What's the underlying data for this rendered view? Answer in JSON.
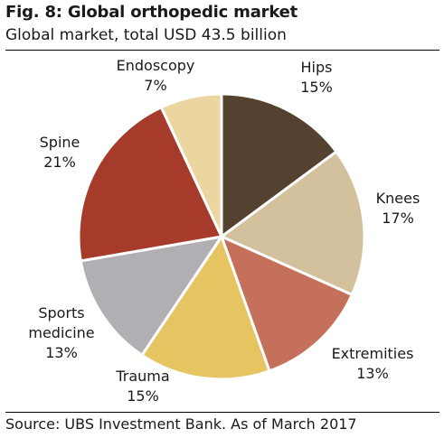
{
  "header": {
    "title": "Fig. 8: Global orthopedic market",
    "subtitle": "Global market, total USD 43.5 billion"
  },
  "footer": {
    "source": "Source: UBS Investment Bank. As of March 2017"
  },
  "chart_data": {
    "type": "pie",
    "title": "Fig. 8: Global orthopedic market",
    "subtitle": "Global market, total USD 43.5 billion",
    "slices": [
      {
        "label": [
          "Hips"
        ],
        "value": 15,
        "value_label": "15%",
        "color": "#54412f"
      },
      {
        "label": [
          "Knees"
        ],
        "value": 17,
        "value_label": "17%",
        "color": "#d3c09c"
      },
      {
        "label": [
          "Extremities"
        ],
        "value": 13,
        "value_label": "13%",
        "color": "#c4705a"
      },
      {
        "label": [
          "Trauma"
        ],
        "value": 15,
        "value_label": "15%",
        "color": "#e6c462"
      },
      {
        "label": [
          "Sports",
          "medicine"
        ],
        "value": 13,
        "value_label": "13%",
        "color": "#afafb4"
      },
      {
        "label": [
          "Spine"
        ],
        "value": 21,
        "value_label": "21%",
        "color": "#a63b2b"
      },
      {
        "label": [
          "Endoscopy"
        ],
        "value": 7,
        "value_label": "7%",
        "color": "#ebd69f"
      }
    ],
    "start_direction": "12 o'clock",
    "order": "clockwise",
    "legend": "none (labels outside slices)"
  }
}
